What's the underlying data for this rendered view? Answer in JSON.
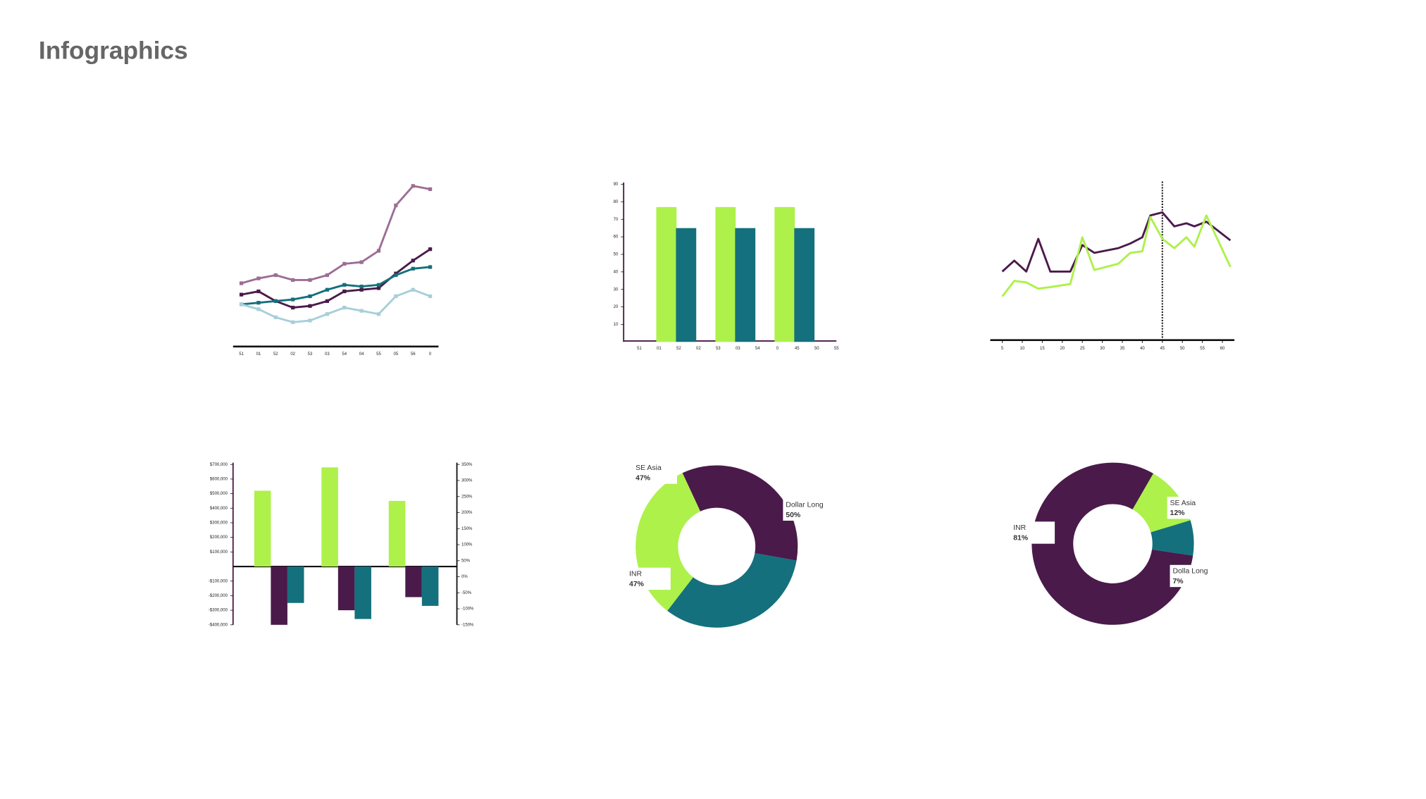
{
  "title": "Infographics",
  "chart_data": [
    {
      "type": "line",
      "markers": true,
      "categories": [
        "51",
        "01",
        "52",
        "02",
        "53",
        "03",
        "54",
        "04",
        "55",
        "05",
        "56",
        "0"
      ],
      "ylim": [
        0,
        100
      ],
      "series": [
        {
          "color": "#9c6d94",
          "values": [
            39,
            42,
            44,
            41,
            41,
            44,
            51,
            52,
            59,
            87,
            99,
            97
          ]
        },
        {
          "color": "#4a1a4a",
          "values": [
            32,
            34,
            28,
            24,
            25,
            28,
            34,
            35,
            36,
            45,
            53,
            60
          ]
        },
        {
          "color": "#14707c",
          "values": [
            26,
            27,
            28,
            29,
            31,
            35,
            38,
            37,
            38,
            44,
            48,
            49
          ]
        },
        {
          "color": "#a6cfd9",
          "values": [
            26,
            23,
            18,
            15,
            16,
            20,
            24,
            22,
            20,
            31,
            35,
            31
          ]
        }
      ]
    },
    {
      "type": "bar",
      "categories": [
        "51",
        "01",
        "52",
        "02",
        "53",
        "03",
        "54",
        "0",
        "45",
        "50",
        "55"
      ],
      "ylim": [
        0,
        90
      ],
      "yticks": [
        10,
        20,
        30,
        40,
        50,
        60,
        70,
        80,
        90
      ],
      "series": [
        {
          "color": "#adf14a",
          "values": [
            null,
            77,
            null,
            null,
            77,
            null,
            null,
            77,
            null,
            null,
            null
          ]
        },
        {
          "color": "#14707c",
          "values": [
            null,
            null,
            65,
            null,
            null,
            65,
            null,
            null,
            65,
            null,
            null
          ]
        }
      ]
    },
    {
      "type": "line",
      "xlim": [
        2,
        63
      ],
      "xticks": [
        5,
        10,
        15,
        20,
        25,
        30,
        35,
        40,
        45,
        50,
        55,
        60
      ],
      "ylim": [
        0,
        100
      ],
      "vline": 45,
      "series": [
        {
          "color": "#4a1a4a",
          "x": [
            5,
            8,
            11,
            14,
            17,
            22,
            25,
            28,
            34,
            37,
            40,
            42,
            45,
            48,
            51,
            53,
            56,
            62
          ],
          "values": [
            44,
            51,
            44,
            65,
            44,
            44,
            61,
            56,
            59,
            62,
            66,
            80,
            82,
            73,
            75,
            73,
            76,
            64
          ]
        },
        {
          "color": "#adf14a",
          "x": [
            5,
            8,
            11,
            14,
            17,
            22,
            25,
            28,
            31,
            34,
            37,
            40,
            42,
            45,
            48,
            51,
            53,
            56,
            62
          ],
          "values": [
            28,
            38,
            37,
            33,
            34,
            36,
            66,
            45,
            47,
            49,
            56,
            57,
            79,
            65,
            59,
            66,
            60,
            80,
            47
          ]
        }
      ]
    },
    {
      "type": "bar",
      "categories": [
        null,
        null,
        null
      ],
      "ylim": [
        -400000,
        700000
      ],
      "yticks": [
        {
          "value": 700000,
          "label": "$700,000"
        },
        {
          "value": 600000,
          "label": "$600,000"
        },
        {
          "value": 500000,
          "label": "$500,000"
        },
        {
          "value": 400000,
          "label": "$400,000"
        },
        {
          "value": 300000,
          "label": "$300,000"
        },
        {
          "value": 200000,
          "label": "$200,000"
        },
        {
          "value": 100000,
          "label": "$100,000"
        },
        {
          "value": -100000,
          "label": "-$100,000"
        },
        {
          "value": -200000,
          "label": "-$200,000"
        },
        {
          "value": -300000,
          "label": "-$300,000"
        },
        {
          "value": -400000,
          "label": "-$400,000"
        }
      ],
      "y2lim": [
        -150,
        350
      ],
      "y2ticks": [
        {
          "value": 350,
          "label": "350%"
        },
        {
          "value": 300,
          "label": "300%"
        },
        {
          "value": 250,
          "label": "250%"
        },
        {
          "value": 200,
          "label": "200%"
        },
        {
          "value": 150,
          "label": "150%"
        },
        {
          "value": 100,
          "label": "100%"
        },
        {
          "value": 50,
          "label": "50%"
        },
        {
          "value": 0,
          "label": "0%"
        },
        {
          "value": -50,
          "label": "-50%"
        },
        {
          "value": -100,
          "label": "-100%"
        },
        {
          "value": -150,
          "label": "-150%"
        }
      ],
      "series": [
        {
          "color": "#adf14a",
          "values": [
            520000,
            680000,
            450000
          ]
        },
        {
          "color": "#4a1a4a",
          "values": [
            -400000,
            -300000,
            -210000
          ]
        },
        {
          "color": "#14707c",
          "values": [
            -250000,
            -360000,
            -270000
          ]
        }
      ]
    },
    {
      "type": "donut",
      "categories": [
        "Dollar Long",
        "INR",
        "SE Asia"
      ],
      "values": [
        50,
        47,
        47
      ],
      "value_labels": [
        "50%",
        "47%",
        "47%"
      ],
      "colors": [
        "#4a1a4a",
        "#14707c",
        "#adf14a"
      ]
    },
    {
      "type": "donut",
      "categories": [
        "INR",
        "SE Asia",
        "Dolla Long"
      ],
      "values": [
        81,
        12,
        7
      ],
      "value_labels": [
        "81%",
        "12%",
        "7%"
      ],
      "colors": [
        "#4a1a4a",
        "#adf14a",
        "#14707c"
      ]
    }
  ]
}
